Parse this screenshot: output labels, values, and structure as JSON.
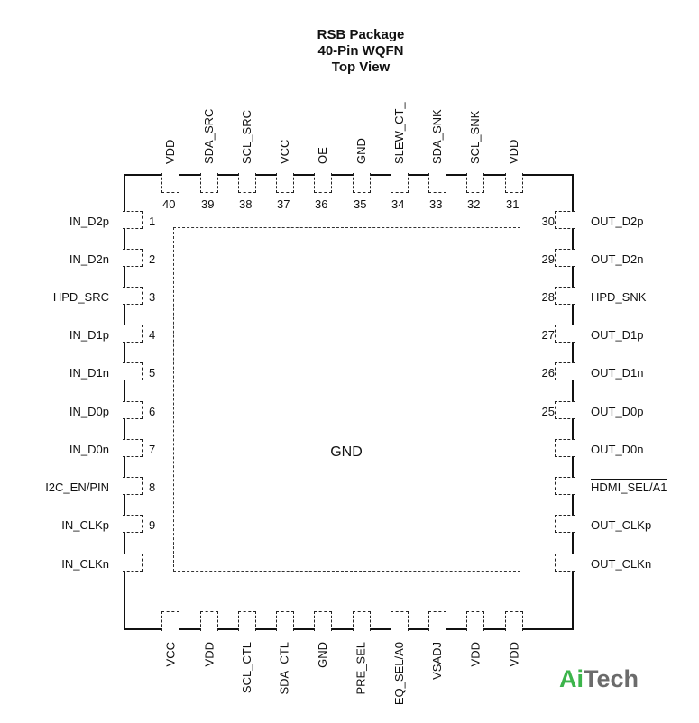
{
  "title": {
    "line1": "RSB Package",
    "line2": "40-Pin WQFN",
    "line3": "Top View"
  },
  "center_label": "GND",
  "top_pins": [
    {
      "num": "40",
      "name": "VDD"
    },
    {
      "num": "39",
      "name": "SDA_SRC"
    },
    {
      "num": "38",
      "name": "SCL_SRC"
    },
    {
      "num": "37",
      "name": "VCC"
    },
    {
      "num": "36",
      "name": "OE"
    },
    {
      "num": "35",
      "name": "GND"
    },
    {
      "num": "34",
      "name": "SLEW_CT_"
    },
    {
      "num": "33",
      "name": "SDA_SNK"
    },
    {
      "num": "32",
      "name": "SCL_SNK"
    },
    {
      "num": "31",
      "name": "VDD"
    }
  ],
  "left_pins": [
    {
      "num": "1",
      "name": "IN_D2p"
    },
    {
      "num": "2",
      "name": "IN_D2n"
    },
    {
      "num": "3",
      "name": "HPD_SRC"
    },
    {
      "num": "4",
      "name": "IN_D1p"
    },
    {
      "num": "5",
      "name": "IN_D1n"
    },
    {
      "num": "6",
      "name": "IN_D0p"
    },
    {
      "num": "7",
      "name": "IN_D0n"
    },
    {
      "num": "8",
      "name": "I2C_EN/PIN"
    },
    {
      "num": "9",
      "name": "IN_CLKp"
    },
    {
      "num": "",
      "name": "IN_CLKn"
    }
  ],
  "right_pins": [
    {
      "num": "30",
      "name": "OUT_D2p"
    },
    {
      "num": "29",
      "name": "OUT_D2n"
    },
    {
      "num": "28",
      "name": "HPD_SNK"
    },
    {
      "num": "27",
      "name": "OUT_D1p"
    },
    {
      "num": "26",
      "name": "OUT_D1n"
    },
    {
      "num": "25",
      "name": "OUT_D0p"
    },
    {
      "num": "",
      "name": "OUT_D0n"
    },
    {
      "num": "",
      "name": "HDMI_SEL/A1"
    },
    {
      "num": "",
      "name": "OUT_CLKp"
    },
    {
      "num": "",
      "name": "OUT_CLKn"
    }
  ],
  "bottom_pins": [
    {
      "name": "VCC"
    },
    {
      "name": "VDD"
    },
    {
      "name": "SCL_CTL"
    },
    {
      "name": "SDA_CTL"
    },
    {
      "name": "GND"
    },
    {
      "name": "PRE_SEL"
    },
    {
      "name": "EQ_SEL/A0"
    },
    {
      "name": "VSADJ"
    },
    {
      "name": "VDD"
    },
    {
      "name": "VDD"
    }
  ],
  "logo": {
    "part1": "Ai",
    "part2": "Tech",
    "color1": "#3cb44b",
    "color2": "#6b6b6b"
  }
}
